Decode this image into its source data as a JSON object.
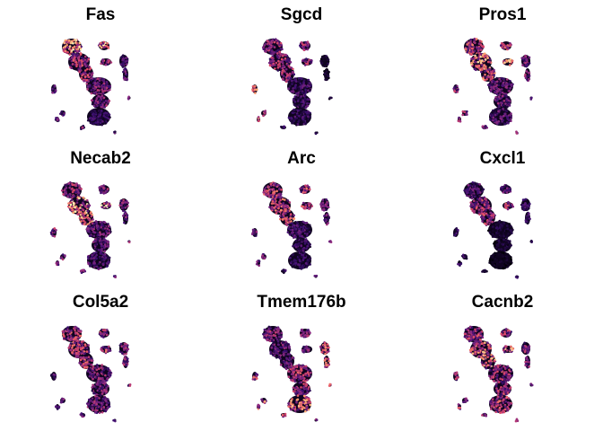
{
  "chart_data": {
    "type": "scatter",
    "description_kind": "feature-plot grid (gene expression on embedding)",
    "colormap": [
      "#000004",
      "#3b0f70",
      "#8c2981",
      "#de4968",
      "#fe9f6d",
      "#fcfdbf"
    ],
    "panels": [
      {
        "title": "Fas",
        "hot": {
          "topleft": 0.85,
          "upper": 0.55,
          "left": 0.35,
          "center": 0.45,
          "bottom": 0.25,
          "right": 0.35
        }
      },
      {
        "title": "Sgcd",
        "hot": {
          "topleft": 0.5,
          "upper": 0.55,
          "left": 0.7,
          "center": 0.3,
          "bottom": 0.25,
          "right": 0.15
        }
      },
      {
        "title": "Pros1",
        "hot": {
          "topleft": 0.65,
          "upper": 0.8,
          "left": 0.5,
          "center": 0.4,
          "bottom": 0.35,
          "right": 0.45
        }
      },
      {
        "title": "Necab2",
        "hot": {
          "topleft": 0.5,
          "upper": 0.85,
          "left": 0.6,
          "center": 0.4,
          "bottom": 0.35,
          "right": 0.45
        }
      },
      {
        "title": "Arc",
        "hot": {
          "topleft": 0.6,
          "upper": 0.65,
          "left": 0.4,
          "center": 0.3,
          "bottom": 0.25,
          "right": 0.4
        }
      },
      {
        "title": "Cxcl1",
        "hot": {
          "topleft": 0.35,
          "upper": 0.55,
          "left": 0.25,
          "center": 0.15,
          "bottom": 0.1,
          "right": 0.25
        }
      },
      {
        "title": "Col5a2",
        "hot": {
          "topleft": 0.6,
          "upper": 0.6,
          "left": 0.35,
          "center": 0.45,
          "bottom": 0.45,
          "right": 0.45
        }
      },
      {
        "title": "Tmem176b",
        "hot": {
          "topleft": 0.45,
          "upper": 0.4,
          "left": 0.7,
          "center": 0.55,
          "bottom": 0.75,
          "right": 0.7
        }
      },
      {
        "title": "Cacnb2",
        "hot": {
          "topleft": 0.55,
          "upper": 0.75,
          "left": 0.55,
          "center": 0.55,
          "bottom": 0.6,
          "right": 0.45
        }
      }
    ]
  }
}
